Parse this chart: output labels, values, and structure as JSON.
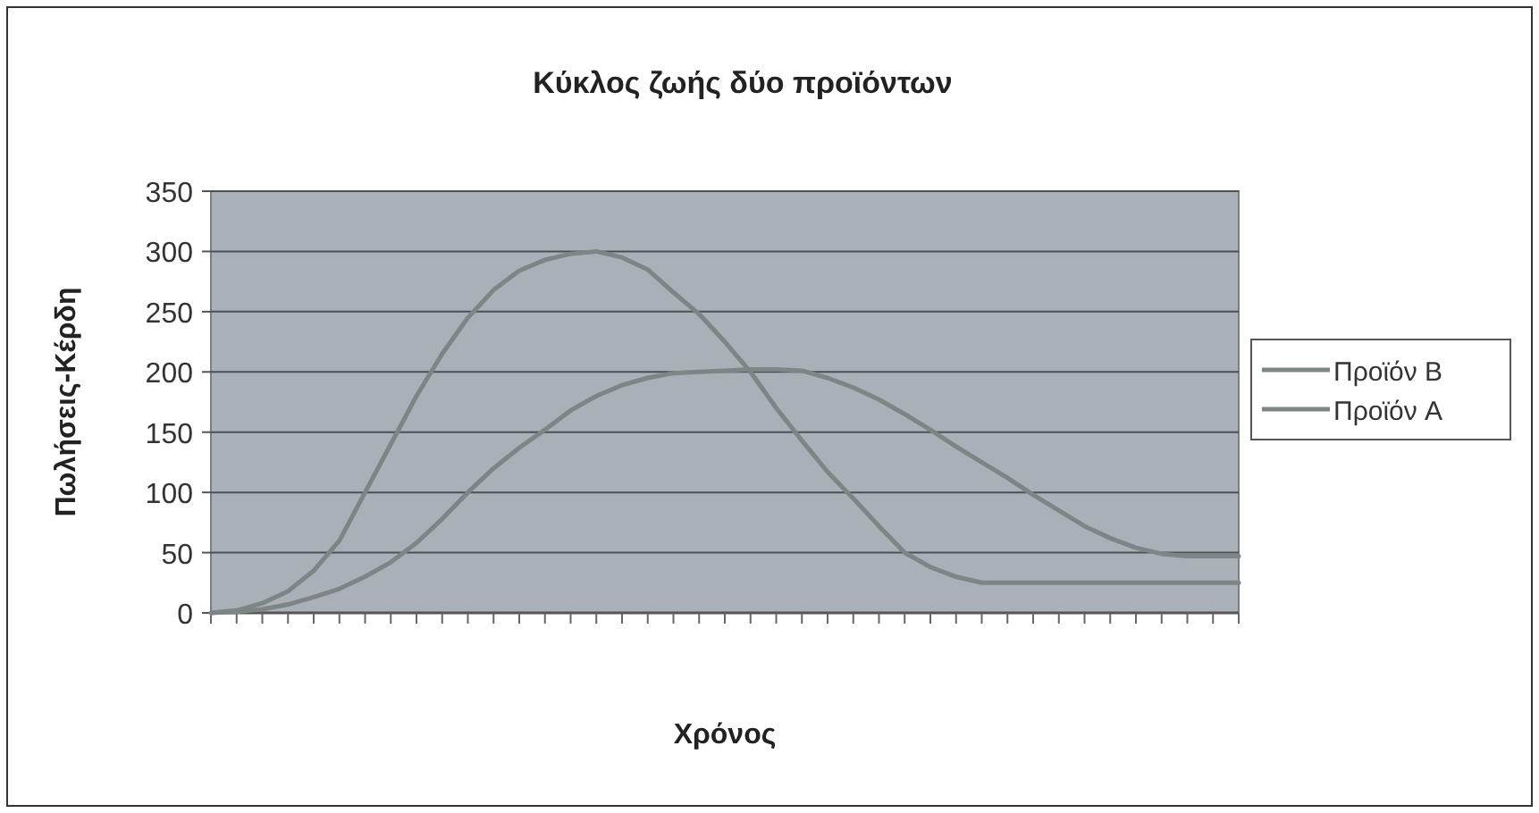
{
  "chart_data": {
    "type": "line",
    "title": "Κύκλος ζωής δύο προϊόντων",
    "xlabel": "Χρόνος",
    "ylabel": "Πωλήσεις-Κέρδη",
    "categories": [
      null,
      null,
      null,
      null,
      null,
      null,
      null,
      null,
      null,
      null,
      null,
      null,
      null,
      null,
      null,
      null,
      null,
      null,
      null,
      null,
      null,
      null,
      null,
      null,
      null,
      null,
      null,
      null,
      null,
      null,
      null,
      null,
      null,
      null,
      null,
      null,
      null,
      null,
      null,
      null,
      null
    ],
    "series": [
      {
        "name": "Προϊόν B",
        "color": "#7d8585",
        "values": [
          0,
          2,
          8,
          18,
          35,
          60,
          100,
          140,
          180,
          215,
          245,
          268,
          284,
          293,
          298,
          300,
          295,
          285,
          266,
          248,
          225,
          200,
          170,
          143,
          117,
          95,
          72,
          50,
          38,
          30,
          25,
          25,
          25,
          25,
          25,
          25,
          25,
          25,
          25,
          25,
          25
        ]
      },
      {
        "name": "Προϊόν A",
        "color": "#7d8585",
        "values": [
          0,
          1,
          3,
          7,
          13,
          20,
          30,
          42,
          58,
          78,
          100,
          120,
          137,
          152,
          168,
          180,
          189,
          195,
          199,
          200,
          201,
          202,
          202,
          201,
          195,
          187,
          177,
          165,
          152,
          138,
          125,
          112,
          98,
          85,
          72,
          62,
          54,
          49,
          47,
          47,
          47
        ]
      }
    ],
    "ylim": [
      0,
      350
    ],
    "yticks": [
      0,
      50,
      100,
      150,
      200,
      250,
      300,
      350
    ],
    "grid": "y",
    "legend": "right",
    "marker": "none",
    "line_style": "solid"
  }
}
